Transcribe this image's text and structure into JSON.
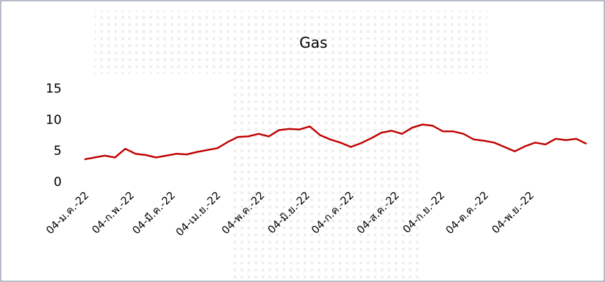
{
  "chart_data": {
    "type": "line",
    "title": "Gas",
    "x": [
      "2022-01-04",
      "2022-01-11",
      "2022-01-18",
      "2022-01-25",
      "2022-02-01",
      "2022-02-08",
      "2022-02-15",
      "2022-02-22",
      "2022-03-01",
      "2022-03-08",
      "2022-03-15",
      "2022-03-22",
      "2022-03-29",
      "2022-04-05",
      "2022-04-12",
      "2022-04-19",
      "2022-04-26",
      "2022-05-03",
      "2022-05-10",
      "2022-05-17",
      "2022-05-24",
      "2022-05-31",
      "2022-06-07",
      "2022-06-14",
      "2022-06-21",
      "2022-06-28",
      "2022-07-05",
      "2022-07-12",
      "2022-07-19",
      "2022-07-26",
      "2022-08-02",
      "2022-08-09",
      "2022-08-16",
      "2022-08-23",
      "2022-08-30",
      "2022-09-06",
      "2022-09-13",
      "2022-09-20",
      "2022-09-27",
      "2022-10-04",
      "2022-10-11",
      "2022-10-18",
      "2022-10-25",
      "2022-11-01",
      "2022-11-08",
      "2022-11-15",
      "2022-11-22",
      "2022-11-29",
      "2022-12-06",
      "2022-12-13"
    ],
    "series": [
      {
        "name": "Gas",
        "color": "#c00000",
        "values": [
          3.7,
          4.0,
          4.3,
          4.0,
          5.4,
          4.6,
          4.4,
          4.0,
          4.3,
          4.6,
          4.5,
          4.9,
          5.2,
          5.5,
          6.5,
          7.3,
          7.4,
          7.8,
          7.4,
          8.4,
          8.6,
          8.5,
          9.0,
          7.6,
          6.9,
          6.4,
          5.7,
          6.3,
          7.1,
          8.0,
          8.3,
          7.8,
          8.8,
          9.3,
          9.1,
          8.2,
          8.2,
          7.8,
          6.9,
          6.7,
          6.4,
          5.7,
          5.0,
          5.8,
          6.4,
          6.1,
          7.0,
          6.8,
          7.0,
          6.2
        ]
      }
    ],
    "xlim": [
      "2022-01-01",
      "2022-12-18"
    ],
    "xticks": [
      {
        "value": "2022-01-04",
        "label": "04-ม.ค.-22"
      },
      {
        "value": "2022-02-04",
        "label": "04-ก.พ.-22"
      },
      {
        "value": "2022-03-04",
        "label": "04-มี.ค.-22"
      },
      {
        "value": "2022-04-04",
        "label": "04-เม.ย.-22"
      },
      {
        "value": "2022-05-04",
        "label": "04-พ.ค.-22"
      },
      {
        "value": "2022-06-04",
        "label": "04-มิ.ย.-22"
      },
      {
        "value": "2022-07-04",
        "label": "04-ก.ค.-22"
      },
      {
        "value": "2022-08-04",
        "label": "04-ส.ค.-22"
      },
      {
        "value": "2022-09-04",
        "label": "04-ก.ย.-22"
      },
      {
        "value": "2022-10-04",
        "label": "04-ต.ค.-22"
      },
      {
        "value": "2022-11-04",
        "label": "04-พ.ย.-22"
      }
    ],
    "ylim": [
      0,
      15
    ],
    "yticks": [
      0,
      5,
      10,
      15
    ],
    "grid": false
  }
}
